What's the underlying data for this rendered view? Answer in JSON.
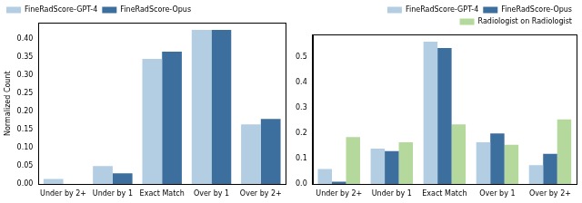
{
  "chart_data": [
    {
      "type": "bar",
      "categories": [
        "Under by 2+",
        "Under by 1",
        "Exact Match",
        "Over by 1",
        "Over by 2+"
      ],
      "y_label": "Normalized Count",
      "series": [
        {
          "name": "FineRadScore-GPT-4",
          "color": "#b3cde3",
          "values": [
            0.015,
            0.05,
            0.345,
            0.425,
            0.165
          ]
        },
        {
          "name": "FineRadScore-Opus",
          "color": "#3d6f9e",
          "values": [
            0.0,
            0.03,
            0.365,
            0.425,
            0.18
          ]
        }
      ],
      "ylim": [
        0,
        0.445
      ],
      "yticks": [
        {
          "value": 0,
          "label": "0.00"
        },
        0.05,
        {
          "value": 0.1,
          "label": "0.10"
        },
        0.15,
        {
          "value": 0.2,
          "label": "0.20"
        },
        0.25,
        {
          "value": 0.3,
          "label": "0.30"
        },
        0.35,
        {
          "value": 0.4,
          "label": "0.40"
        }
      ],
      "grid": false,
      "legend": "upper left"
    },
    {
      "type": "bar",
      "categories": [
        "Under by 2+",
        "Under by 1",
        "Exact Match",
        "Over by 1",
        "Over by 2+"
      ],
      "series": [
        {
          "name": "FineRadScore-GPT-4",
          "color": "#b3cde3",
          "values": [
            0.06,
            0.14,
            0.56,
            0.165,
            0.075
          ]
        },
        {
          "name": "FineRadScore-Opus",
          "color": "#3d6f9e",
          "values": [
            0.01,
            0.13,
            0.535,
            0.2,
            0.12
          ]
        },
        {
          "name": "Radiologist on Radiologist",
          "color": "#b5d99c",
          "values": [
            0.185,
            0.165,
            0.235,
            0.155,
            0.255
          ]
        }
      ],
      "ylim": [
        0,
        0.588
      ],
      "yticks": [
        {
          "value": 0,
          "label": "0.0"
        },
        0.1,
        0.2,
        0.3,
        0.4,
        0.5
      ],
      "grid": false,
      "legend": "upper right"
    }
  ]
}
